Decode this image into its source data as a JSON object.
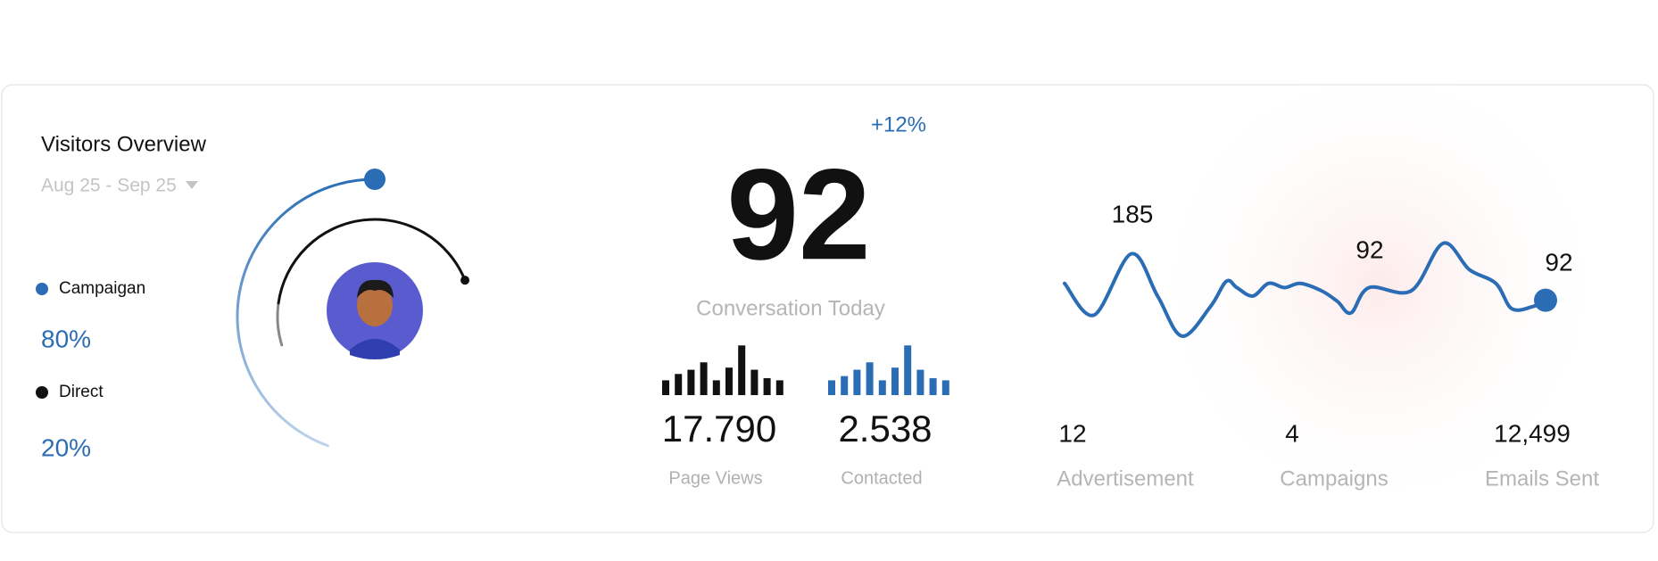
{
  "header": {
    "title": "Visitors Overview",
    "date_range": "Aug 25 - Sep 25"
  },
  "visitors": {
    "type": "radial",
    "series": [
      {
        "name": "Campaigan",
        "color": "#2a6db5",
        "value": 80,
        "label": "80%"
      },
      {
        "name": "Direct",
        "color": "#111111",
        "value": 20,
        "label": "20%"
      }
    ]
  },
  "conversation": {
    "change": "+12%",
    "value": 92,
    "label": "Conversation Today"
  },
  "mini_charts": [
    {
      "type": "bar",
      "color": "#111111",
      "values": [
        14,
        20,
        24,
        31,
        14,
        26,
        47,
        24,
        16,
        14
      ],
      "total": "17.790",
      "label": "Page Views"
    },
    {
      "type": "bar",
      "color": "#2a6db5",
      "values": [
        14,
        18,
        24,
        31,
        14,
        26,
        47,
        24,
        16,
        14
      ],
      "total": "2.538",
      "label": "Contacted"
    }
  ],
  "trend": {
    "type": "line",
    "color": "#2a6db5",
    "x": [
      0,
      28,
      63,
      88,
      111,
      138,
      153,
      163,
      178,
      193,
      208,
      223,
      243,
      258,
      271,
      288,
      328,
      358,
      383,
      408,
      423,
      443,
      455
    ],
    "values": [
      62,
      32,
      90,
      50,
      12,
      40,
      64,
      58,
      50,
      62,
      58,
      62,
      55,
      45,
      34,
      58,
      55,
      100,
      75,
      62,
      38,
      40,
      46
    ],
    "xlim": [
      0,
      455
    ],
    "ylim": [
      0,
      110
    ],
    "annotations": [
      "185",
      "92",
      "92"
    ]
  },
  "stats": [
    {
      "value": "12",
      "label": "Advertisement"
    },
    {
      "value": "4",
      "label": "Campaigns"
    },
    {
      "value": "12,499",
      "label": "Emails Sent"
    }
  ]
}
